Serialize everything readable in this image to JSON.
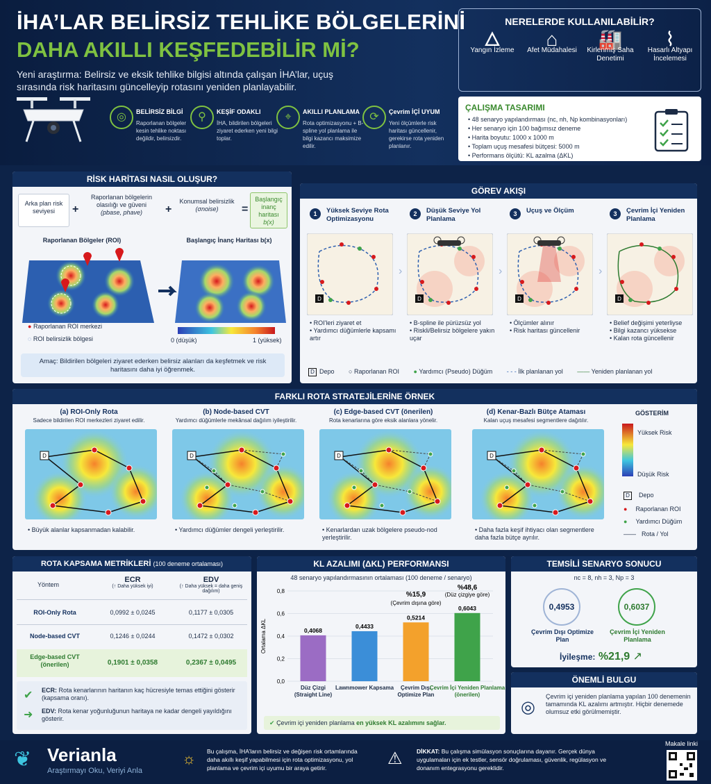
{
  "header": {
    "title1": "İHA’LAR BELİRSİZ TEHLİKE BÖLGELERİNİ",
    "title2": "DAHA AKILLI KEŞFEDEBİLİR Mİ?",
    "subtitle": "Yeni araştırma: Belirsiz ve eksik tehlike bilgisi altında çalışan İHA’lar, uçuş sırasında risk haritasını güncelleyip rotasını yeniden planlayabilir.",
    "features": [
      {
        "icon": "target-icon",
        "title": "BELİRSİZ BİLGİ",
        "desc": "Raporlanan bölgeler kesin tehlike noktası değildir, belirsizdir."
      },
      {
        "icon": "magnifier-icon",
        "title": "KEŞİF ODAKLI",
        "desc": "İHA, bildirilen bölgeleri ziyaret ederken yeni bilgi toplar."
      },
      {
        "icon": "route-icon",
        "title": "AKILLI PLANLAMA",
        "desc": "Rota optimizasyonu + B-spline yol planlama ile bilgi kazancı maksimize edilir."
      },
      {
        "icon": "refresh-icon",
        "title": "Çevrim İÇİ UYUM",
        "desc": "Yeni ölçümlerle risk haritası güncellenir, gerekirse rota yeniden planlanır."
      }
    ]
  },
  "usage": {
    "title": "NERELERDE KULLANILABİLİR?",
    "items": [
      {
        "icon": "fire-icon",
        "label": "Yangın İzleme"
      },
      {
        "icon": "house-icon",
        "label": "Afet Müdahalesi"
      },
      {
        "icon": "factory-icon",
        "label": "Kirlenmiş Saha Denetimi"
      },
      {
        "icon": "bridge-icon",
        "label": "Hasarlı Altyapı İncelemesi"
      }
    ]
  },
  "design": {
    "title": "ÇALIŞMA TASARIMI",
    "items": [
      "48 senaryo yapılandırması (nc, nh, Np kombinasyonları)",
      "Her senaryo için 100 bağımsız deneme",
      "Harita boyutu: 1000 x 1000 m",
      "Toplam uçuş mesafesi bütçesi: 5000 m",
      "Performans ölçütü: KL azalma (ΔKL)"
    ]
  },
  "risk": {
    "title": "RİSK HARİTASI NASIL OLUŞUR?",
    "f1": "Arka plan risk seviyesi",
    "plus": "+",
    "f2": "Raporlanan bölgelerin olasılığı ve güveni",
    "f2b": "(pbase, phave)",
    "f3": "Konumsal belirsizlik",
    "f3b": "(σnoise)",
    "eq": "=",
    "f4": "Başlangıç inanç haritası",
    "f4b": "b(x)",
    "roi_label": "Raporlanan Bölgeler (ROI)",
    "belief_label": "Başlangıç İnanç Haritası b(x)",
    "leg1": "Raporlanan ROI merkezi",
    "leg2": "ROI belirsizlik bölgesi",
    "scale_min": "0",
    "scale_max": "1",
    "scale_min_l": "0 (düşük)",
    "scale_max_l": "1 (yüksek)",
    "goal": "Amaç: Bildirilen bölgeleri ziyaret ederken belirsiz alanları da keşfetmek ve risk haritasını daha iyi öğrenmek."
  },
  "flow": {
    "title": "GÖREV AKIŞI",
    "steps": [
      {
        "n": "1",
        "title": "Yüksek Seviye Rota Optimizasyonu",
        "b1": "ROI'leri ziyaret et",
        "b2": "Yardımcı düğümlerle kapsamı artır"
      },
      {
        "n": "2",
        "title": "Düşük Seviye Yol Planlama",
        "b1": "B-spline ile pürüzsüz yol",
        "b2": "Riskli/Belirsiz bölgelere yakın uçar"
      },
      {
        "n": "3",
        "title": "Uçuş ve Ölçüm",
        "b1": "Ölçümler alınır",
        "b2": "Risk haritası güncellenir"
      },
      {
        "n": "3",
        "title": "Çevrim İçi Yeniden Planlama",
        "b1": "Belief değişimi yeterliyse",
        "b2": "Bilgi kazancı yüksekse",
        "b3": "Kalan rota güncellenir"
      }
    ],
    "legend": {
      "depot": "Depo",
      "depot_letter": "D",
      "roi": "Raporlanan ROI",
      "pseudo": "Yardımcı (Pseudo) Düğüm",
      "initial": "İlk planlanan yol",
      "replanned": "Yeniden planlanan yol"
    }
  },
  "strategies": {
    "title": "FARKLI ROTA STRATEJİLERİNE ÖRNEK",
    "items": [
      {
        "title": "(a) ROI-Only Rota",
        "desc": "Sadece bildirilen ROI merkezleri ziyaret edilir.",
        "note": "Büyük alanlar kapsanmadan kalabilir."
      },
      {
        "title": "(b) Node-based CVT",
        "desc": "Yardımcı düğümlerle mekânsal dağılım iyileştirilir.",
        "note": "Yardımcı düğümler dengeli yerleştirilir."
      },
      {
        "title": "(c) Edge-based CVT (önerilen)",
        "desc": "Rota kenarlarına göre eksik alanlara yönelir.",
        "note": "Kenarlardan uzak bölgelere pseudo-nod yerleştirilir."
      },
      {
        "title": "(d) Kenar-Bazlı Bütçe Ataması",
        "desc": "Kalan uçuş mesafesi segmentlere dağıtılır.",
        "note": "Daha fazla keşif ihtiyacı olan segmentlere daha fazla bütçe ayrılır."
      }
    ],
    "legend": {
      "title": "GÖSTERİM",
      "high": "Yüksek Risk",
      "low": "Düşük Risk",
      "depot": "Depo",
      "depot_letter": "D",
      "roi": "Raporlanan ROI",
      "aux": "Yardımcı Düğüm",
      "route": "Rota / Yol"
    }
  },
  "metrics": {
    "title": "ROTA KAPSAMA METRİKLERİ",
    "title_sub": "(100 deneme ortalaması)",
    "col0": "Yöntem",
    "col1": "ECR",
    "col1s": "(↑ Daha yüksek iyi)",
    "col2": "EDV",
    "col2s": "(↑ Daha yüksek = daha geniş dağılım)",
    "rows": [
      {
        "m": "ROI-Only Rota",
        "ecr": "0,0992 ± 0,0245",
        "edv": "0,1177 ± 0,0305"
      },
      {
        "m": "Node-based CVT",
        "ecr": "0,1246 ± 0,0244",
        "edv": "0,1472 ± 0,0302"
      },
      {
        "m": "Edge-based CVT (önerilen)",
        "ecr": "0,1901 ± 0,0358",
        "edv": "0,2367 ± 0,0495"
      }
    ],
    "ecr_note_k": "ECR:",
    "ecr_note": "Rota kenarlarının haritanın kaç hücresiyle temas ettiğini gösterir (kapsama oranı).",
    "edv_note_k": "EDV:",
    "edv_note": "Rota kenar yoğunluğunun haritaya ne kadar dengeli yayıldığını gösterir."
  },
  "chart_data": {
    "type": "bar",
    "title": "KL AZALIMI (ΔKL) PERFORMANSI",
    "subtitle": "48 senaryo yapılandırmasının ortalaması (100 deneme / senaryo)",
    "ylabel": "Ortalama ΔKL",
    "ylim": [
      0,
      0.8
    ],
    "yticks": [
      "0,0",
      "0,2",
      "0,4",
      "0,6",
      "0,8"
    ],
    "categories": [
      "Düz Çizgi (Straight Line)",
      "Lawnmower Kapsama",
      "Çevrim Dışı Optimize Plan",
      "Çevrim İçi Yeniden Planlama (önerilen)"
    ],
    "values": [
      0.4068,
      0.4433,
      0.5214,
      0.6043
    ],
    "labels": [
      "0,4068",
      "0,4433",
      "0,5214",
      "0,6043"
    ],
    "colors": [
      "#9b6cc4",
      "#3b8ed8",
      "#f3a12c",
      "#3fa34a"
    ],
    "ann1": "%15,9",
    "ann1s": "(Çevrim dışına göre)",
    "ann2": "%48,6",
    "ann2s": "(Düz çizgiye göre)",
    "footer": "Çevrim içi yeniden planlama",
    "footer_b": "en yüksek KL azalımını sağlar."
  },
  "scenario": {
    "title": "TEMSİLİ SENARYO SONUCU",
    "params": "nc = 8, nh = 3, Np = 3",
    "v1": "0,4953",
    "l1": "Çevrim Dışı Optimize Plan",
    "v2": "0,6037",
    "l2": "Çevrim İçi Yeniden Planlama",
    "imp_label": "İyileşme:",
    "imp": "%21,9"
  },
  "finding": {
    "title": "ÖNEMLİ BULGU",
    "text": "Çevrim içi yeniden planlama yapılan 100 denemenin tamamında KL azalımı artmıştır. Hiçbir denemede olumsuz etki görülmemiştir."
  },
  "footer": {
    "brand": "Verianla",
    "tagline": "Araştırmayı Oku, Veriyi Anla",
    "info": "Bu çalışma, İHA’ların belirsiz ve değişen risk ortamlarında daha akıllı keşif yapabilmesi için rota optimizasyonu, yol planlama ve çevrim içi uyumu bir araya getirir.",
    "warn_k": "DİKKAT:",
    "warn": "Bu çalışma simülasyon sonuçlarına dayanır. Gerçek dünya uygulamaları için ek testler, sensör doğrulaması, güvenlik, regülasyon ve donanım entegrasyonu gereklidir.",
    "qr": "Makale linki"
  }
}
